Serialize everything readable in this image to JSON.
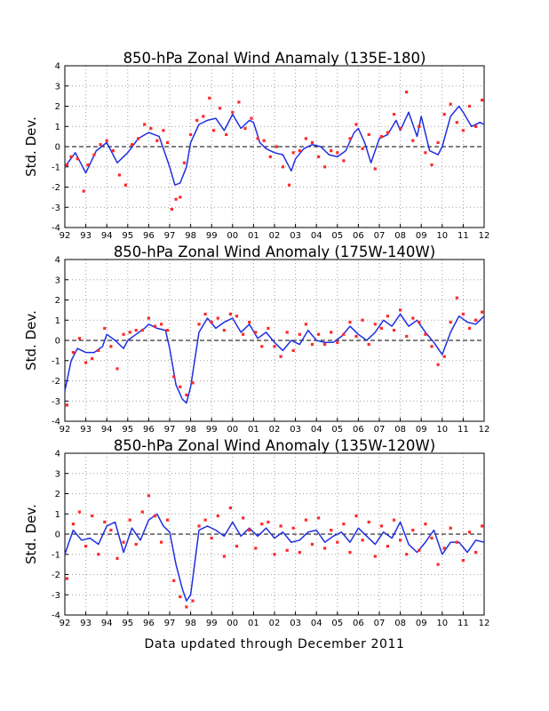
{
  "footer": "Data updated through December 2011",
  "style": {
    "point_color": "#ff2a2a",
    "line_color": "#1f2fe0",
    "zero_line_color": "#000000"
  },
  "chart_data": [
    {
      "type": "scatter",
      "title": "850-hPa Zonal Wind Anamaly (135E-180)",
      "ylabel": "Std. Dev.",
      "xlabel": "",
      "x_tick_labels": [
        "92",
        "93",
        "94",
        "95",
        "96",
        "97",
        "98",
        "99",
        "00",
        "01",
        "02",
        "03",
        "04",
        "05",
        "06",
        "07",
        "08",
        "09",
        "10",
        "11",
        "12"
      ],
      "y_tick_labels": [
        "-4",
        "-3",
        "-2",
        "-1",
        "0",
        "1",
        "2",
        "3",
        "4"
      ],
      "xlim": [
        1992,
        2012
      ],
      "ylim": [
        -4,
        4
      ],
      "grid": true,
      "zero_line": 0,
      "series": [
        {
          "style": "line",
          "x": [
            1992.0,
            1992.5,
            1993.0,
            1993.5,
            1994.0,
            1994.5,
            1995.0,
            1995.5,
            1996.0,
            1996.5,
            1997.0,
            1997.25,
            1997.5,
            1997.8,
            1998.0,
            1998.4,
            1998.8,
            1999.2,
            1999.6,
            2000.0,
            2000.4,
            2000.8,
            2001.0,
            2001.3,
            2001.6,
            2002.0,
            2002.4,
            2002.8,
            2003.0,
            2003.4,
            2003.8,
            2004.2,
            2004.6,
            2005.0,
            2005.4,
            2005.8,
            2006.0,
            2006.3,
            2006.6,
            2007.0,
            2007.4,
            2007.8,
            2008.0,
            2008.4,
            2008.8,
            2009.0,
            2009.4,
            2009.8,
            2010.0,
            2010.4,
            2010.8,
            2011.0,
            2011.4,
            2011.8,
            2012.0
          ],
          "y": [
            -1.0,
            -0.3,
            -1.3,
            -0.2,
            0.2,
            -0.8,
            -0.3,
            0.4,
            0.7,
            0.5,
            -1.0,
            -1.9,
            -1.8,
            -1.0,
            0.2,
            1.1,
            1.3,
            1.4,
            0.8,
            1.6,
            0.9,
            1.3,
            1.2,
            0.2,
            -0.1,
            -0.3,
            -0.4,
            -1.2,
            -0.6,
            -0.1,
            0.1,
            0.0,
            -0.4,
            -0.5,
            -0.2,
            0.7,
            0.9,
            0.2,
            -0.8,
            0.4,
            0.6,
            1.3,
            0.8,
            1.7,
            0.5,
            1.5,
            -0.2,
            -0.4,
            0.0,
            1.5,
            2.0,
            1.7,
            1.0,
            1.2,
            1.1
          ]
        },
        {
          "style": "points",
          "x": [
            1992.1,
            1992.3,
            1992.6,
            1992.9,
            1993.1,
            1993.4,
            1993.7,
            1994.0,
            1994.3,
            1994.6,
            1994.9,
            1995.2,
            1995.5,
            1995.8,
            1996.1,
            1996.4,
            1996.7,
            1996.9,
            1997.1,
            1997.3,
            1997.5,
            1997.7,
            1998.0,
            1998.3,
            1998.6,
            1998.9,
            1999.1,
            1999.4,
            1999.7,
            2000.0,
            2000.3,
            2000.6,
            2000.9,
            2001.2,
            2001.5,
            2001.8,
            2002.1,
            2002.4,
            2002.7,
            2002.9,
            2003.2,
            2003.5,
            2003.8,
            2004.1,
            2004.4,
            2004.7,
            2005.0,
            2005.3,
            2005.6,
            2005.9,
            2006.2,
            2006.5,
            2006.8,
            2007.1,
            2007.4,
            2007.7,
            2008.0,
            2008.3,
            2008.6,
            2008.9,
            2009.2,
            2009.5,
            2009.8,
            2010.1,
            2010.4,
            2010.7,
            2011.0,
            2011.3,
            2011.6,
            2011.9
          ],
          "y": [
            -0.9,
            -0.5,
            -0.6,
            -2.2,
            -0.9,
            -0.4,
            0.1,
            0.3,
            -0.2,
            -1.4,
            -1.9,
            0.1,
            0.4,
            1.1,
            0.9,
            0.3,
            0.8,
            0.2,
            -3.1,
            -2.6,
            -2.5,
            -0.8,
            0.6,
            1.3,
            1.5,
            2.4,
            0.8,
            1.9,
            0.6,
            1.7,
            2.2,
            0.9,
            1.4,
            0.4,
            0.3,
            -0.5,
            0.0,
            -1.0,
            -1.9,
            -0.3,
            -0.2,
            0.4,
            0.2,
            -0.5,
            -1.0,
            -0.2,
            -0.3,
            -0.7,
            0.4,
            1.1,
            -0.1,
            0.6,
            -1.1,
            0.5,
            0.7,
            1.6,
            0.9,
            2.7,
            0.3,
            1.0,
            -0.3,
            -0.9,
            0.2,
            1.6,
            2.1,
            1.2,
            0.8,
            2.0,
            1.0,
            2.3
          ]
        }
      ]
    },
    {
      "type": "scatter",
      "title": "850-hPa Zonal Wind Anomaly (175W-140W)",
      "ylabel": "Std. Dev.",
      "xlabel": "",
      "x_tick_labels": [
        "92",
        "93",
        "94",
        "95",
        "96",
        "97",
        "98",
        "99",
        "00",
        "01",
        "02",
        "03",
        "04",
        "05",
        "06",
        "07",
        "08",
        "09",
        "10",
        "11",
        "12"
      ],
      "y_tick_labels": [
        "-4",
        "-3",
        "-2",
        "-1",
        "0",
        "1",
        "2",
        "3",
        "4"
      ],
      "xlim": [
        1992,
        2012
      ],
      "ylim": [
        -4,
        4
      ],
      "grid": true,
      "zero_line": 0,
      "series": [
        {
          "style": "line",
          "x": [
            1992.0,
            1992.3,
            1992.6,
            1993.0,
            1993.4,
            1993.8,
            1994.0,
            1994.4,
            1994.8,
            1995.0,
            1995.4,
            1995.8,
            1996.0,
            1996.4,
            1996.8,
            1997.0,
            1997.3,
            1997.6,
            1997.8,
            1998.0,
            1998.4,
            1998.8,
            1999.2,
            1999.6,
            2000.0,
            2000.4,
            2000.8,
            2001.2,
            2001.6,
            2002.0,
            2002.4,
            2002.8,
            2003.2,
            2003.6,
            2004.0,
            2004.4,
            2004.8,
            2005.2,
            2005.6,
            2006.0,
            2006.4,
            2006.8,
            2007.2,
            2007.6,
            2008.0,
            2008.4,
            2008.8,
            2009.2,
            2009.6,
            2010.0,
            2010.4,
            2010.8,
            2011.2,
            2011.6,
            2012.0
          ],
          "y": [
            -2.5,
            -1.0,
            -0.4,
            -0.6,
            -0.6,
            -0.3,
            0.3,
            0.0,
            -0.4,
            0.0,
            0.3,
            0.6,
            0.8,
            0.6,
            0.5,
            -0.4,
            -2.2,
            -2.9,
            -3.1,
            -2.3,
            0.4,
            1.1,
            0.6,
            0.9,
            1.1,
            0.4,
            0.8,
            0.1,
            0.4,
            -0.1,
            -0.5,
            0.0,
            -0.2,
            0.5,
            0.0,
            -0.1,
            -0.1,
            0.2,
            0.7,
            0.3,
            0.0,
            0.4,
            1.0,
            0.7,
            1.3,
            0.7,
            1.0,
            0.4,
            -0.1,
            -0.7,
            0.4,
            1.2,
            0.9,
            0.8,
            1.2
          ]
        },
        {
          "style": "points",
          "x": [
            1992.1,
            1992.4,
            1992.7,
            1993.0,
            1993.3,
            1993.6,
            1993.9,
            1994.2,
            1994.5,
            1994.8,
            1995.1,
            1995.4,
            1995.7,
            1996.0,
            1996.3,
            1996.6,
            1996.9,
            1997.2,
            1997.5,
            1997.8,
            1998.1,
            1998.4,
            1998.7,
            1999.0,
            1999.3,
            1999.6,
            1999.9,
            2000.2,
            2000.5,
            2000.8,
            2001.1,
            2001.4,
            2001.7,
            2002.0,
            2002.3,
            2002.6,
            2002.9,
            2003.2,
            2003.5,
            2003.8,
            2004.1,
            2004.4,
            2004.7,
            2005.0,
            2005.3,
            2005.6,
            2005.9,
            2006.2,
            2006.5,
            2006.8,
            2007.1,
            2007.4,
            2007.7,
            2008.0,
            2008.3,
            2008.6,
            2008.9,
            2009.2,
            2009.5,
            2009.8,
            2010.1,
            2010.4,
            2010.7,
            2011.0,
            2011.3,
            2011.6,
            2011.9
          ],
          "y": [
            -3.2,
            -0.6,
            0.1,
            -1.1,
            -0.9,
            -0.5,
            0.6,
            -0.3,
            -1.4,
            0.3,
            0.4,
            0.5,
            0.5,
            1.1,
            0.7,
            0.8,
            0.5,
            -1.8,
            -2.3,
            -2.7,
            -2.1,
            0.8,
            1.3,
            0.9,
            1.1,
            0.5,
            1.3,
            1.2,
            0.3,
            0.9,
            0.4,
            -0.3,
            0.6,
            -0.3,
            -0.8,
            0.4,
            -0.5,
            0.3,
            0.8,
            -0.2,
            0.3,
            -0.2,
            0.4,
            -0.1,
            0.3,
            0.9,
            0.2,
            1.0,
            -0.2,
            0.8,
            0.6,
            1.2,
            0.5,
            1.5,
            0.2,
            1.1,
            0.9,
            0.3,
            -0.3,
            -1.2,
            -0.8,
            0.9,
            2.1,
            1.3,
            0.6,
            1.0,
            1.4
          ]
        }
      ]
    },
    {
      "type": "scatter",
      "title": "850-hPa Zonal Wind Anomaly (135W-120W)",
      "ylabel": "Std. Dev.",
      "xlabel": "",
      "x_tick_labels": [
        "92",
        "93",
        "94",
        "95",
        "96",
        "97",
        "98",
        "99",
        "00",
        "01",
        "02",
        "03",
        "04",
        "05",
        "06",
        "07",
        "08",
        "09",
        "10",
        "11",
        "12"
      ],
      "y_tick_labels": [
        "-4",
        "-3",
        "-2",
        "-1",
        "0",
        "1",
        "2",
        "3",
        "4"
      ],
      "xlim": [
        1992,
        2012
      ],
      "ylim": [
        -4,
        4
      ],
      "grid": true,
      "zero_line": 0,
      "series": [
        {
          "style": "line",
          "x": [
            1992.0,
            1992.4,
            1992.8,
            1993.2,
            1993.6,
            1994.0,
            1994.4,
            1994.8,
            1995.2,
            1995.6,
            1996.0,
            1996.4,
            1996.7,
            1997.0,
            1997.3,
            1997.6,
            1997.8,
            1998.0,
            1998.4,
            1998.8,
            1999.2,
            1999.6,
            2000.0,
            2000.4,
            2000.8,
            2001.2,
            2001.6,
            2002.0,
            2002.4,
            2002.8,
            2003.2,
            2003.6,
            2004.0,
            2004.4,
            2004.8,
            2005.2,
            2005.6,
            2006.0,
            2006.4,
            2006.8,
            2007.2,
            2007.6,
            2008.0,
            2008.4,
            2008.8,
            2009.2,
            2009.6,
            2010.0,
            2010.4,
            2010.8,
            2011.2,
            2011.6,
            2012.0
          ],
          "y": [
            -1.0,
            0.2,
            -0.3,
            -0.2,
            -0.5,
            0.4,
            0.6,
            -0.9,
            0.3,
            -0.3,
            0.7,
            1.0,
            0.4,
            0.1,
            -1.5,
            -2.7,
            -3.3,
            -3.0,
            0.2,
            0.4,
            0.2,
            -0.1,
            0.6,
            -0.1,
            0.3,
            -0.1,
            0.3,
            -0.2,
            0.1,
            -0.4,
            -0.3,
            0.1,
            0.2,
            -0.4,
            -0.1,
            0.1,
            -0.4,
            0.3,
            -0.1,
            -0.5,
            0.1,
            -0.2,
            0.6,
            -0.5,
            -0.9,
            -0.4,
            0.2,
            -1.0,
            -0.4,
            -0.4,
            -0.9,
            -0.3,
            -0.4
          ]
        },
        {
          "style": "points",
          "x": [
            1992.1,
            1992.4,
            1992.7,
            1993.0,
            1993.3,
            1993.6,
            1993.9,
            1994.2,
            1994.5,
            1994.8,
            1995.1,
            1995.4,
            1995.7,
            1996.0,
            1996.3,
            1996.6,
            1996.9,
            1997.2,
            1997.5,
            1997.8,
            1998.1,
            1998.4,
            1998.7,
            1999.0,
            1999.3,
            1999.6,
            1999.9,
            2000.2,
            2000.5,
            2000.8,
            2001.1,
            2001.4,
            2001.7,
            2002.0,
            2002.3,
            2002.6,
            2002.9,
            2003.2,
            2003.5,
            2003.8,
            2004.1,
            2004.4,
            2004.7,
            2005.0,
            2005.3,
            2005.6,
            2005.9,
            2006.2,
            2006.5,
            2006.8,
            2007.1,
            2007.4,
            2007.7,
            2008.0,
            2008.3,
            2008.6,
            2008.9,
            2009.2,
            2009.5,
            2009.8,
            2010.1,
            2010.4,
            2010.7,
            2011.0,
            2011.3,
            2011.6,
            2011.9
          ],
          "y": [
            -2.2,
            0.5,
            1.1,
            -0.6,
            0.9,
            -1.0,
            0.6,
            0.2,
            -1.2,
            -0.4,
            0.7,
            -0.5,
            1.1,
            1.9,
            0.9,
            -0.4,
            0.7,
            -2.3,
            -3.1,
            -3.6,
            -3.3,
            0.4,
            0.7,
            -0.2,
            0.9,
            -1.1,
            1.3,
            -0.6,
            0.8,
            0.2,
            -0.7,
            0.5,
            0.6,
            -1.0,
            0.4,
            -0.8,
            0.3,
            -0.9,
            0.7,
            -0.5,
            0.8,
            -0.7,
            0.2,
            -0.4,
            0.5,
            -0.9,
            0.9,
            -0.3,
            0.6,
            -1.1,
            0.4,
            -0.6,
            0.7,
            -0.3,
            -1.0,
            0.2,
            -0.8,
            0.5,
            -0.2,
            -1.5,
            -0.7,
            0.3,
            -0.4,
            -1.3,
            0.1,
            -0.9,
            0.4
          ]
        }
      ]
    }
  ]
}
